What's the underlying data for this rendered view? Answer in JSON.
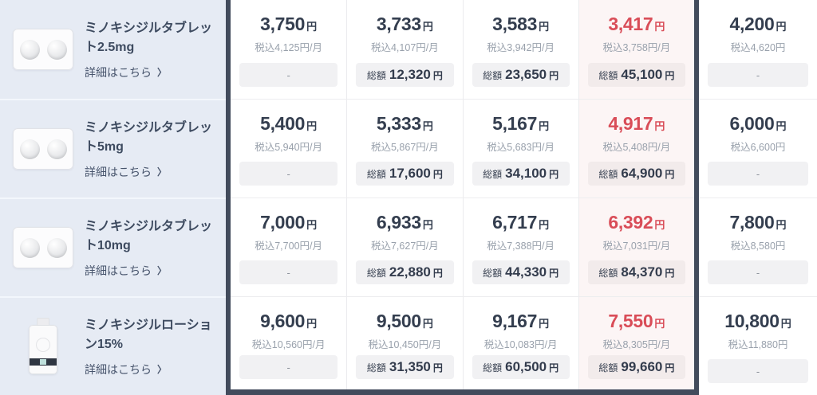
{
  "labels": {
    "yen": "円",
    "total_prefix": "総額",
    "dash": "-",
    "detail": "詳細はこちら",
    "chevron": "〉"
  },
  "colors": {
    "accent_red": "#d94d58",
    "frame_dark": "#424b5c",
    "product_bg": "#e6ebf4",
    "highlight_bg": "#fcf5f5",
    "badge_bg": "#f1f1f3",
    "price_navy": "#343e4f",
    "tax_gray": "#99a1ac"
  },
  "products": [
    {
      "name": "ミノキシジルタブレット2.5mg",
      "image": "two-pills-blister",
      "plans": [
        {
          "price": "3,750",
          "tax": "税込4,125円/月",
          "total": null
        },
        {
          "price": "3,733",
          "tax": "税込4,107円/月",
          "total": "12,320"
        },
        {
          "price": "3,583",
          "tax": "税込3,942円/月",
          "total": "23,650"
        },
        {
          "price": "3,417",
          "tax": "税込3,758円/月",
          "total": "45,100"
        },
        {
          "price": "4,200",
          "tax": "税込4,620円",
          "total": null
        }
      ]
    },
    {
      "name": "ミノキシジルタブレット5mg",
      "image": "two-pills-blister",
      "plans": [
        {
          "price": "5,400",
          "tax": "税込5,940円/月",
          "total": null
        },
        {
          "price": "5,333",
          "tax": "税込5,867円/月",
          "total": "17,600"
        },
        {
          "price": "5,167",
          "tax": "税込5,683円/月",
          "total": "34,100"
        },
        {
          "price": "4,917",
          "tax": "税込5,408円/月",
          "total": "64,900"
        },
        {
          "price": "6,000",
          "tax": "税込6,600円",
          "total": null
        }
      ]
    },
    {
      "name": "ミノキシジルタブレット10mg",
      "image": "two-pills-blister",
      "plans": [
        {
          "price": "7,000",
          "tax": "税込7,700円/月",
          "total": null
        },
        {
          "price": "6,933",
          "tax": "税込7,627円/月",
          "total": "22,880"
        },
        {
          "price": "6,717",
          "tax": "税込7,388円/月",
          "total": "44,330"
        },
        {
          "price": "6,392",
          "tax": "税込7,031円/月",
          "total": "84,370"
        },
        {
          "price": "7,800",
          "tax": "税込8,580円",
          "total": null
        }
      ]
    },
    {
      "name": "ミノキシジルローション15%",
      "image": "lotion-bottle",
      "plans": [
        {
          "price": "9,600",
          "tax": "税込10,560円/月",
          "total": null
        },
        {
          "price": "9,500",
          "tax": "税込10,450円/月",
          "total": "31,350"
        },
        {
          "price": "9,167",
          "tax": "税込10,083円/月",
          "total": "60,500"
        },
        {
          "price": "7,550",
          "tax": "税込8,305円/月",
          "total": "99,660"
        },
        {
          "price": "10,800",
          "tax": "税込11,880円",
          "total": null
        }
      ]
    }
  ]
}
